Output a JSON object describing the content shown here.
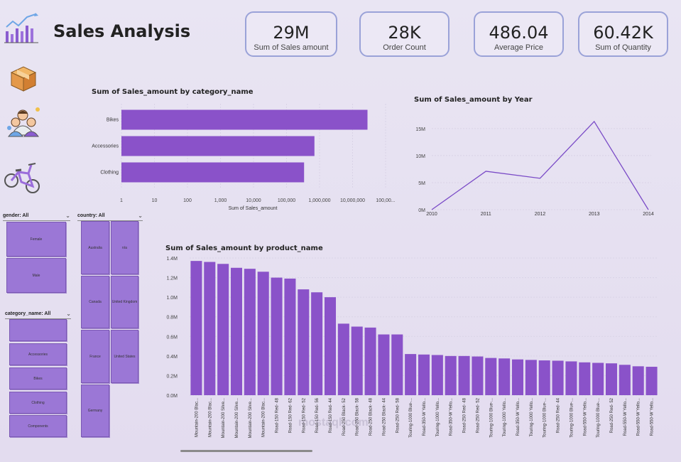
{
  "app": {
    "title": "Sales Analysis"
  },
  "kpis": [
    {
      "value": "29M",
      "label": "Sum of Sales amount"
    },
    {
      "value": "28K",
      "label": "Order Count"
    },
    {
      "value": "486.04",
      "label": "Average Price"
    },
    {
      "value": "60.42K",
      "label": "Sum of Quantity"
    }
  ],
  "side_icons": [
    "line-chart-logo-icon",
    "box-icon",
    "customers-icon",
    "bike-icon"
  ],
  "slicers": {
    "gender": {
      "header": "gender: All",
      "items": [
        "Female",
        "Male"
      ]
    },
    "country": {
      "header": "country: All",
      "items": [
        "Australia",
        "n/a",
        "Canada",
        "United Kingdom",
        "France",
        "United States",
        "Germany"
      ]
    },
    "category": {
      "header": "category_name: All",
      "items": [
        "",
        "Accessories",
        "Bikes",
        "Clothing",
        "Components"
      ]
    }
  },
  "watermark": "mostaql.com",
  "colors": {
    "bar": "#8a52c9",
    "line": "#7a4bc7",
    "accent": "#9aa2d8"
  },
  "chart_data": [
    {
      "type": "bar",
      "orientation": "horizontal",
      "title": "Sum of Sales_amount by category_name",
      "xlabel": "Sum of Sales_amount",
      "x_scale": "log",
      "x_ticks": [
        "1",
        "10",
        "100",
        "1,000",
        "10,000",
        "100,000",
        "1,000,000",
        "10,000,000",
        "100,00..."
      ],
      "categories": [
        "Bikes",
        "Accessories",
        "Clothing"
      ],
      "values": [
        28300000,
        700000,
        340000
      ]
    },
    {
      "type": "line",
      "title": "Sum of Sales_amount by Year",
      "x": [
        "2010",
        "2011",
        "2012",
        "2013",
        "2014"
      ],
      "values": [
        0,
        7100000,
        5800000,
        16300000,
        0
      ],
      "y_ticks": [
        "0M",
        "5M",
        "10M",
        "15M"
      ],
      "ylim": [
        0,
        18000000
      ]
    },
    {
      "type": "bar",
      "title": "Sum of Sales_amount by product_name",
      "y_ticks": [
        "0.0M",
        "0.2M",
        "0.4M",
        "0.6M",
        "0.8M",
        "1.0M",
        "1.2M",
        "1.4M"
      ],
      "ylim": [
        0,
        1400000
      ],
      "categories": [
        "Mountain-200 Blac...",
        "Mountain-200 Blac...",
        "Mountain-200 Silve...",
        "Mountain-200 Silve...",
        "Mountain-200 Silve...",
        "Mountain-200 Blac...",
        "Road-150 Red- 48",
        "Road-150 Red- 62",
        "Road-150 Red- 52",
        "Road-150 Red- 56",
        "Road-150 Red- 44",
        "Road-250 Black- 52",
        "Road-250 Black- 58",
        "Road-250 Black- 48",
        "Road-250 Black- 44",
        "Road-250 Red- 58",
        "Touring-1000 Blue-...",
        "Road-350-W Yello...",
        "Touring-1000 Yello...",
        "Road-350-W Yello...",
        "Road-250 Red- 48",
        "Road-250 Red- 52",
        "Touring-1000 Blue-...",
        "Touring-1000 Yello...",
        "Road-350-W Yello...",
        "Touring-1000 Yello...",
        "Touring-1000 Blue-...",
        "Road-250 Red- 44",
        "Touring-1000 Blue-...",
        "Road-550-W Yello...",
        "Touring-1000 Blue-...",
        "Road-250 Red- 52",
        "Road-550-W Yello...",
        "Road-550-W Yello...",
        "Road-550-W Yello..."
      ],
      "values": [
        1370000,
        1360000,
        1340000,
        1300000,
        1290000,
        1260000,
        1200000,
        1190000,
        1080000,
        1050000,
        1000000,
        730000,
        700000,
        690000,
        620000,
        620000,
        420000,
        415000,
        410000,
        400000,
        400000,
        395000,
        380000,
        375000,
        365000,
        360000,
        355000,
        352000,
        345000,
        335000,
        330000,
        325000,
        310000,
        295000,
        290000
      ]
    }
  ]
}
